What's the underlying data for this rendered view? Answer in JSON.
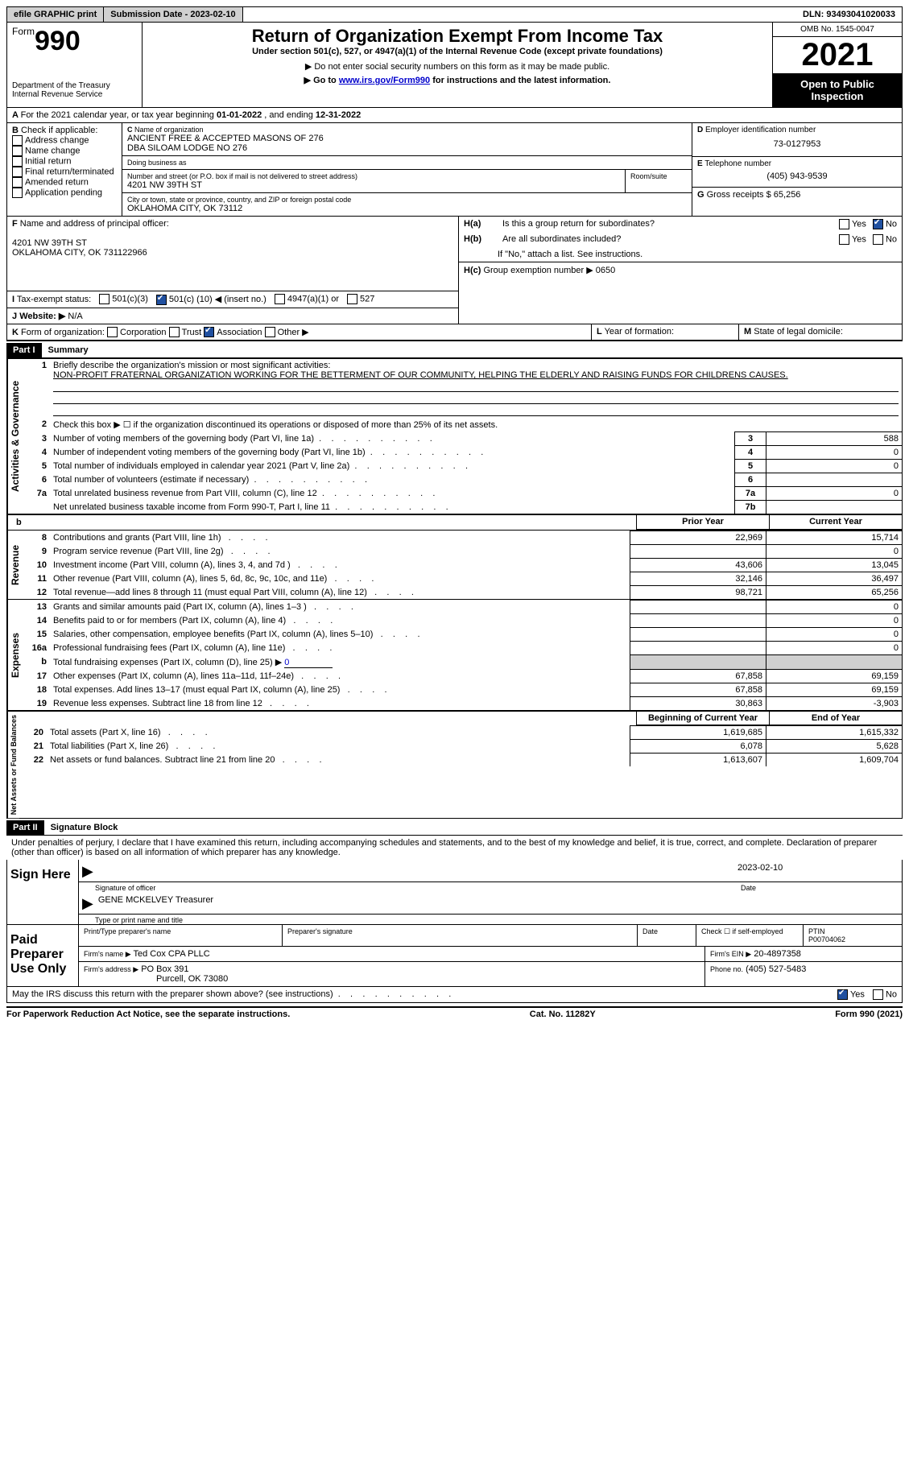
{
  "top": {
    "efile": "efile GRAPHIC print",
    "submission_label": "Submission Date - ",
    "submission_date": "2023-02-10",
    "dln_label": "DLN: ",
    "dln": "93493041020033"
  },
  "header": {
    "form_word": "Form",
    "form_number": "990",
    "dept": "Department of the Treasury",
    "irs": "Internal Revenue Service",
    "title": "Return of Organization Exempt From Income Tax",
    "subtitle": "Under section 501(c), 527, or 4947(a)(1) of the Internal Revenue Code (except private foundations)",
    "note1": "Do not enter social security numbers on this form as it may be made public.",
    "note2_pre": "Go to ",
    "note2_link": "www.irs.gov/Form990",
    "note2_post": " for instructions and the latest information.",
    "omb": "OMB No. 1545-0047",
    "year": "2021",
    "open": "Open to Public Inspection"
  },
  "A": {
    "text_pre": "For the 2021 calendar year, or tax year beginning ",
    "begin": "01-01-2022",
    "mid": "   , and ending ",
    "end": "12-31-2022"
  },
  "B": {
    "label": "Check if applicable:",
    "opts": [
      "Address change",
      "Name change",
      "Initial return",
      "Final return/terminated",
      "Amended return",
      "Application pending"
    ]
  },
  "C": {
    "name_label": "Name of organization",
    "name1": "ANCIENT FREE & ACCEPTED MASONS OF 276",
    "name2": "DBA SILOAM LODGE NO 276",
    "dba_label": "Doing business as",
    "addr_label": "Number and street (or P.O. box if mail is not delivered to street address)",
    "room_label": "Room/suite",
    "addr": "4201 NW 39TH ST",
    "city_label": "City or town, state or province, country, and ZIP or foreign postal code",
    "city": "OKLAHOMA CITY, OK  73112"
  },
  "D": {
    "label": "Employer identification number",
    "val": "73-0127953"
  },
  "E": {
    "label": "Telephone number",
    "val": "(405) 943-9539"
  },
  "G": {
    "label": "Gross receipts $",
    "val": "65,256"
  },
  "F": {
    "label": "Name and address of principal officer:",
    "addr1": "4201 NW 39TH ST",
    "addr2": "OKLAHOMA CITY, OK  731122966"
  },
  "H": {
    "a": "Is this a group return for subordinates?",
    "b": "Are all subordinates included?",
    "b_note": "If \"No,\" attach a list. See instructions.",
    "c": "Group exemption number ▶",
    "c_val": "0650",
    "yes": "Yes",
    "no": "No"
  },
  "I": {
    "label": "Tax-exempt status:",
    "opt1": "501(c)(3)",
    "opt2_pre": "501(c) (",
    "opt2_num": "10",
    "opt2_post": ") ◀ (insert no.)",
    "opt3": "4947(a)(1) or",
    "opt4": "527"
  },
  "J": {
    "label": "Website: ▶",
    "val": "N/A"
  },
  "K": {
    "label": "Form of organization:",
    "opts": [
      "Corporation",
      "Trust",
      "Association",
      "Other ▶"
    ],
    "checked_index": 2
  },
  "L": {
    "label": "Year of formation:"
  },
  "M": {
    "label": "State of legal domicile:"
  },
  "part1": {
    "header": "Part I",
    "title": "Summary",
    "line1_label": "Briefly describe the organization's mission or most significant activities:",
    "mission": "NON-PROFIT FRATERNAL ORGANIZATION WORKING FOR THE BETTERMENT OF OUR COMMUNITY, HELPING THE ELDERLY AND RAISING FUNDS FOR CHILDRENS CAUSES.",
    "line2": "Check this box ▶ ☐ if the organization discontinued its operations or disposed of more than 25% of its net assets.",
    "governance_label": "Activities & Governance",
    "revenue_label": "Revenue",
    "expenses_label": "Expenses",
    "netassets_label": "Net Assets or Fund Balances",
    "prior_year": "Prior Year",
    "current_year": "Current Year",
    "begin_year": "Beginning of Current Year",
    "end_year": "End of Year",
    "rows_gov": [
      {
        "n": "3",
        "t": "Number of voting members of the governing body (Part VI, line 1a)",
        "box": "3",
        "v": "588"
      },
      {
        "n": "4",
        "t": "Number of independent voting members of the governing body (Part VI, line 1b)",
        "box": "4",
        "v": "0"
      },
      {
        "n": "5",
        "t": "Total number of individuals employed in calendar year 2021 (Part V, line 2a)",
        "box": "5",
        "v": "0"
      },
      {
        "n": "6",
        "t": "Total number of volunteers (estimate if necessary)",
        "box": "6",
        "v": ""
      },
      {
        "n": "7a",
        "t": "Total unrelated business revenue from Part VIII, column (C), line 12",
        "box": "7a",
        "v": "0"
      },
      {
        "n": "",
        "t": "Net unrelated business taxable income from Form 990-T, Part I, line 11",
        "box": "7b",
        "v": ""
      }
    ],
    "rows_rev": [
      {
        "n": "8",
        "t": "Contributions and grants (Part VIII, line 1h)",
        "p": "22,969",
        "c": "15,714"
      },
      {
        "n": "9",
        "t": "Program service revenue (Part VIII, line 2g)",
        "p": "",
        "c": "0"
      },
      {
        "n": "10",
        "t": "Investment income (Part VIII, column (A), lines 3, 4, and 7d )",
        "p": "43,606",
        "c": "13,045"
      },
      {
        "n": "11",
        "t": "Other revenue (Part VIII, column (A), lines 5, 6d, 8c, 9c, 10c, and 11e)",
        "p": "32,146",
        "c": "36,497"
      },
      {
        "n": "12",
        "t": "Total revenue—add lines 8 through 11 (must equal Part VIII, column (A), line 12)",
        "p": "98,721",
        "c": "65,256"
      }
    ],
    "rows_exp": [
      {
        "n": "13",
        "t": "Grants and similar amounts paid (Part IX, column (A), lines 1–3 )",
        "p": "",
        "c": "0"
      },
      {
        "n": "14",
        "t": "Benefits paid to or for members (Part IX, column (A), line 4)",
        "p": "",
        "c": "0"
      },
      {
        "n": "15",
        "t": "Salaries, other compensation, employee benefits (Part IX, column (A), lines 5–10)",
        "p": "",
        "c": "0"
      },
      {
        "n": "16a",
        "t": "Professional fundraising fees (Part IX, column (A), line 11e)",
        "p": "",
        "c": "0"
      },
      {
        "n": "b",
        "t": "Total fundraising expenses (Part IX, column (D), line 25) ▶",
        "p": "shaded",
        "c": "shaded",
        "extra": "0"
      },
      {
        "n": "17",
        "t": "Other expenses (Part IX, column (A), lines 11a–11d, 11f–24e)",
        "p": "67,858",
        "c": "69,159"
      },
      {
        "n": "18",
        "t": "Total expenses. Add lines 13–17 (must equal Part IX, column (A), line 25)",
        "p": "67,858",
        "c": "69,159"
      },
      {
        "n": "19",
        "t": "Revenue less expenses. Subtract line 18 from line 12",
        "p": "30,863",
        "c": "-3,903"
      }
    ],
    "rows_net": [
      {
        "n": "20",
        "t": "Total assets (Part X, line 16)",
        "p": "1,619,685",
        "c": "1,615,332"
      },
      {
        "n": "21",
        "t": "Total liabilities (Part X, line 26)",
        "p": "6,078",
        "c": "5,628"
      },
      {
        "n": "22",
        "t": "Net assets or fund balances. Subtract line 21 from line 20",
        "p": "1,613,607",
        "c": "1,609,704"
      }
    ]
  },
  "part2": {
    "header": "Part II",
    "title": "Signature Block",
    "jurat": "Under penalties of perjury, I declare that I have examined this return, including accompanying schedules and statements, and to the best of my knowledge and belief, it is true, correct, and complete. Declaration of preparer (other than officer) is based on all information of which preparer has any knowledge.",
    "sign_here": "Sign Here",
    "sig_officer": "Signature of officer",
    "sig_date": "2023-02-10",
    "date_label": "Date",
    "name_title": "GENE MCKELVEY  Treasurer",
    "name_label": "Type or print name and title",
    "paid": "Paid Preparer Use Only",
    "prep_name_label": "Print/Type preparer's name",
    "prep_sig_label": "Preparer's signature",
    "check_self": "Check ☐ if self-employed",
    "ptin_label": "PTIN",
    "ptin": "P00704062",
    "firm_name_label": "Firm's name    ▶",
    "firm_name": "Ted Cox CPA PLLC",
    "firm_ein_label": "Firm's EIN ▶",
    "firm_ein": "20-4897358",
    "firm_addr_label": "Firm's address ▶",
    "firm_addr1": "PO Box 391",
    "firm_addr2": "Purcell, OK  73080",
    "phone_label": "Phone no.",
    "phone": "(405) 527-5483",
    "discuss": "May the IRS discuss this return with the preparer shown above? (see instructions)",
    "yes": "Yes",
    "no": "No"
  },
  "footer": {
    "pra": "For Paperwork Reduction Act Notice, see the separate instructions.",
    "cat": "Cat. No. 11282Y",
    "form": "Form 990 (2021)"
  }
}
